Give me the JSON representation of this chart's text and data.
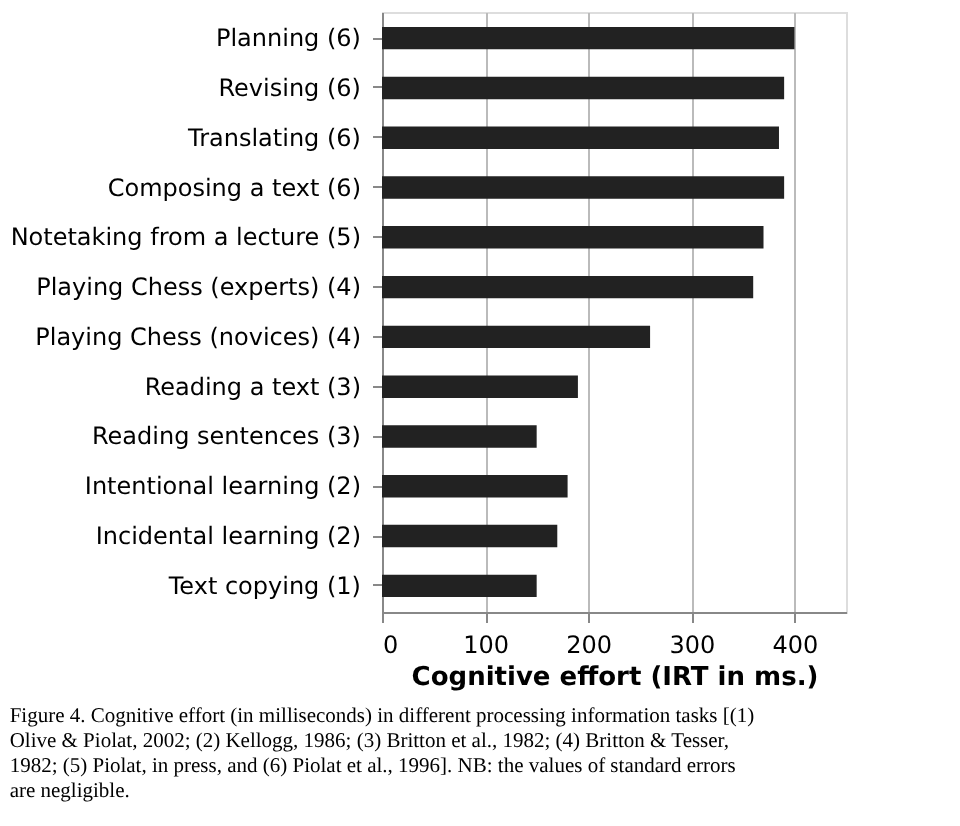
{
  "chart_data": {
    "type": "bar",
    "orientation": "horizontal",
    "xlabel": "Cognitive effort (IRT in ms.)",
    "categories": [
      "Planning (6)",
      "Revising (6)",
      "Translating (6)",
      "Composing a text (6)",
      "Notetaking from a lecture (5)",
      "Playing Chess (experts) (4)",
      "Playing Chess (novices) (4)",
      "Reading a text (3)",
      "Reading sentences (3)",
      "Intentional learning (2)",
      "Incidental learning (2)",
      "Text copying (1)"
    ],
    "values": [
      400,
      390,
      385,
      390,
      370,
      360,
      260,
      190,
      150,
      180,
      170,
      150
    ],
    "color": "#222222",
    "xlim": [
      0,
      450
    ],
    "xticks": [
      0,
      100,
      200,
      300,
      400
    ],
    "grid": "x",
    "annotations": [
      "Figure 4.  Cognitive effort (in milliseconds) in different processing information tasks [(1) Olive & Piolat, 2002; (2) Kellogg, 1986; (3) Britton et al., 1982; (4) Britton & Tesser, 1982; (5) Piolat, in press, and (6) Piolat et al., 1996]. NB: the values of standard errors are negligible."
    ]
  }
}
